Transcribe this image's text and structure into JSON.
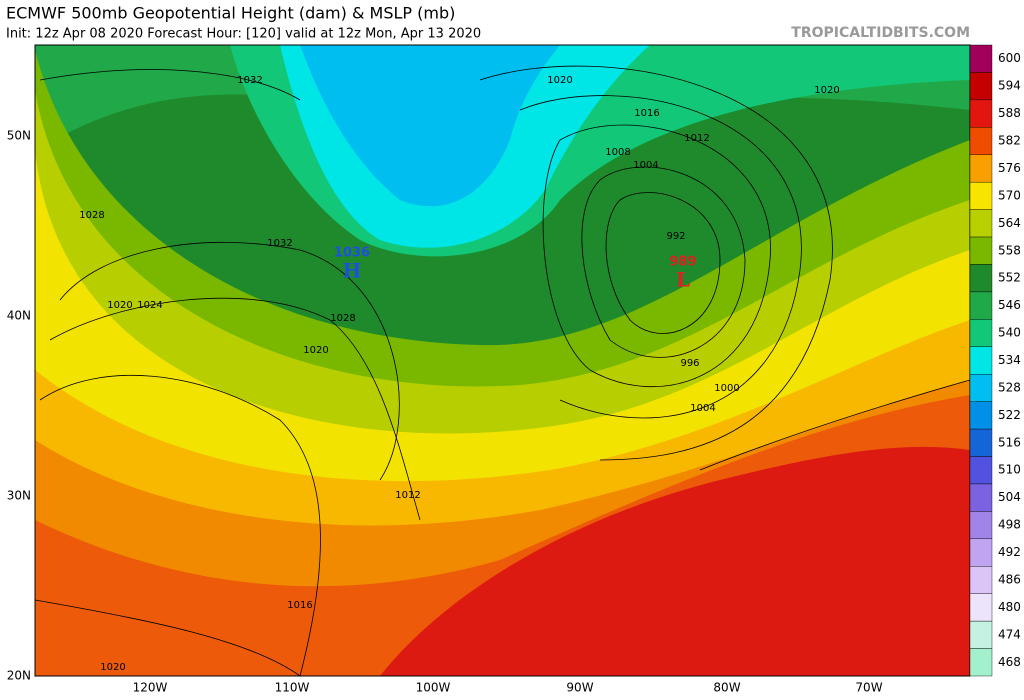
{
  "header": {
    "title": "ECMWF 500mb Geopotential Height (dam) & MSLP (mb)",
    "subtitle": "Init: 12z Apr 08 2020   Forecast Hour: [120]   valid at 12z Mon, Apr 13 2020",
    "site": "TROPICALTIDBITS.COM"
  },
  "colorbar": {
    "labels": [
      600,
      594,
      588,
      582,
      576,
      570,
      564,
      558,
      552,
      546,
      540,
      534,
      528,
      522,
      516,
      510,
      504,
      498,
      492,
      486,
      480,
      474,
      468
    ]
  },
  "lat_labels": [
    "50N",
    "40N",
    "30N",
    "20N"
  ],
  "lon_labels": [
    "120W",
    "110W",
    "100W",
    "90W",
    "80W",
    "70W"
  ],
  "contour_labels": [
    "1032",
    "1028",
    "1032",
    "1020",
    "1024",
    "1028",
    "1020",
    "1012",
    "1016",
    "1020",
    "1020",
    "1016",
    "1012",
    "1008",
    "1004",
    "992",
    "996",
    "1000",
    "1004",
    "1020"
  ],
  "centers": [
    {
      "symbol": "H",
      "value": "1036"
    },
    {
      "symbol": "L",
      "value": "989"
    }
  ]
}
